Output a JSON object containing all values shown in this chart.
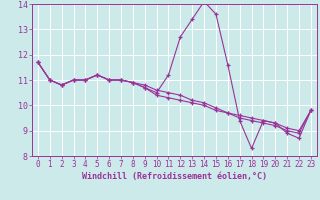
{
  "background_color": "#cceaea",
  "grid_color": "#ffffff",
  "line_color": "#993399",
  "xlabel": "Windchill (Refroidissement éolien,°C)",
  "xlim_min": -0.5,
  "xlim_max": 23.5,
  "ylim_min": 8,
  "ylim_max": 14,
  "xticks": [
    0,
    1,
    2,
    3,
    4,
    5,
    6,
    7,
    8,
    9,
    10,
    11,
    12,
    13,
    14,
    15,
    16,
    17,
    18,
    19,
    20,
    21,
    22,
    23
  ],
  "yticks": [
    8,
    9,
    10,
    11,
    12,
    13,
    14
  ],
  "line1_x": [
    0,
    1,
    2,
    3,
    4,
    5,
    6,
    7,
    8,
    9,
    10,
    11,
    12,
    13,
    14,
    15,
    16,
    17,
    18,
    19,
    20,
    21,
    22,
    23
  ],
  "line1_y": [
    11.7,
    11.0,
    10.8,
    11.0,
    11.0,
    11.2,
    11.0,
    11.0,
    10.9,
    10.8,
    10.6,
    10.5,
    10.4,
    10.2,
    10.1,
    9.9,
    9.7,
    9.6,
    9.5,
    9.4,
    9.3,
    9.1,
    9.0,
    9.8
  ],
  "line2_x": [
    0,
    1,
    2,
    3,
    4,
    5,
    6,
    7,
    8,
    9,
    10,
    11,
    12,
    13,
    14,
    15,
    16,
    17,
    18,
    19,
    20,
    21,
    22,
    23
  ],
  "line2_y": [
    11.7,
    11.0,
    10.8,
    11.0,
    11.0,
    11.2,
    11.0,
    11.0,
    10.9,
    10.7,
    10.4,
    10.3,
    10.2,
    10.1,
    10.0,
    9.8,
    9.7,
    9.5,
    9.4,
    9.3,
    9.2,
    9.0,
    8.9,
    9.8
  ],
  "line3_x": [
    0,
    1,
    2,
    3,
    4,
    5,
    6,
    7,
    8,
    9,
    10,
    11,
    12,
    13,
    14,
    15,
    16,
    17,
    18,
    19,
    20,
    21,
    22,
    23
  ],
  "line3_y": [
    11.7,
    11.0,
    10.8,
    11.0,
    11.0,
    11.2,
    11.0,
    11.0,
    10.9,
    10.7,
    10.5,
    11.2,
    12.7,
    13.4,
    14.1,
    13.6,
    11.6,
    9.4,
    8.3,
    9.4,
    9.3,
    8.9,
    8.7,
    9.8
  ],
  "tick_fontsize": 5.5,
  "xlabel_fontsize": 6.0
}
